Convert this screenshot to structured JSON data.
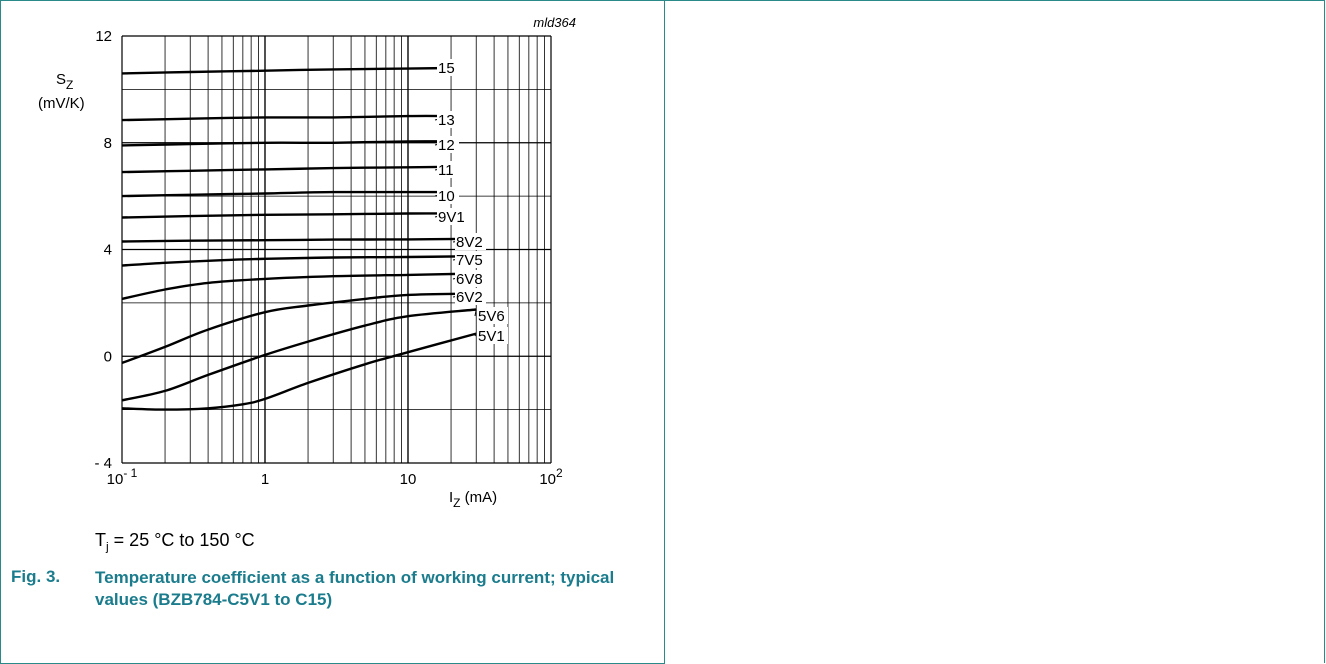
{
  "figure": {
    "code": "mld364",
    "number": "Fig. 3.",
    "caption": "Temperature coefficient as a function of working current; typical values (BZB784-C5V1 to C15)",
    "condition_prefix": "T",
    "condition_sub": "j",
    "condition_suffix": " = 25 °C to 150 °C"
  },
  "chart_data": {
    "type": "line",
    "x_scale": "log",
    "xlim": [
      0.1,
      100
    ],
    "ylim": [
      -4,
      12
    ],
    "grid": true,
    "xlabel_main": "I",
    "xlabel_sub": "Z",
    "xlabel_unit": " (mA)",
    "ylabel_main": "S",
    "ylabel_sub": "Z",
    "ylabel_unit": "(mV/K)",
    "x_ticks": [
      {
        "value": 0.1,
        "base": "10",
        "exp": "- 1"
      },
      {
        "value": 1,
        "base": "1",
        "exp": ""
      },
      {
        "value": 10,
        "base": "10",
        "exp": ""
      },
      {
        "value": 100,
        "base": "10",
        "exp": "2"
      }
    ],
    "y_ticks": [
      {
        "value": 12,
        "label": "12"
      },
      {
        "value": 8,
        "label": "8"
      },
      {
        "value": 4,
        "label": "4"
      },
      {
        "value": 0,
        "label": "0"
      },
      {
        "value": -4,
        "label": "- 4"
      }
    ],
    "series": [
      {
        "name": "15",
        "x": [
          0.1,
          0.3,
          1,
          3,
          10,
          20
        ],
        "y": [
          10.6,
          10.65,
          10.7,
          10.75,
          10.78,
          10.8
        ]
      },
      {
        "name": "13",
        "x": [
          0.1,
          0.3,
          1,
          3,
          10,
          20
        ],
        "y": [
          8.85,
          8.9,
          8.95,
          8.95,
          9.0,
          9.0
        ]
      },
      {
        "name": "12",
        "x": [
          0.1,
          0.3,
          1,
          3,
          10,
          20
        ],
        "y": [
          7.9,
          7.95,
          8.0,
          8.0,
          8.05,
          8.05
        ]
      },
      {
        "name": "11",
        "x": [
          0.1,
          0.3,
          1,
          3,
          10,
          20
        ],
        "y": [
          6.9,
          6.95,
          7.0,
          7.05,
          7.08,
          7.1
        ]
      },
      {
        "name": "10",
        "x": [
          0.1,
          0.3,
          1,
          3,
          10,
          20
        ],
        "y": [
          6.0,
          6.05,
          6.1,
          6.15,
          6.15,
          6.15
        ]
      },
      {
        "name": "9V1",
        "x": [
          0.1,
          0.3,
          1,
          3,
          10,
          20
        ],
        "y": [
          5.2,
          5.25,
          5.3,
          5.32,
          5.35,
          5.35
        ]
      },
      {
        "name": "8V2",
        "x": [
          0.1,
          0.3,
          1,
          3,
          10,
          30
        ],
        "y": [
          4.3,
          4.33,
          4.35,
          4.37,
          4.38,
          4.4
        ]
      },
      {
        "name": "7V5",
        "x": [
          0.1,
          0.2,
          0.5,
          1,
          3,
          10,
          30
        ],
        "y": [
          3.4,
          3.5,
          3.6,
          3.65,
          3.7,
          3.72,
          3.75
        ]
      },
      {
        "name": "6V8",
        "x": [
          0.1,
          0.2,
          0.4,
          1,
          3,
          10,
          30
        ],
        "y": [
          2.15,
          2.5,
          2.75,
          2.9,
          3.0,
          3.05,
          3.1
        ]
      },
      {
        "name": "6V2",
        "x": [
          0.1,
          0.2,
          0.4,
          1,
          2,
          5,
          10,
          30
        ],
        "y": [
          -0.25,
          0.35,
          1.0,
          1.65,
          1.9,
          2.15,
          2.3,
          2.35
        ]
      },
      {
        "name": "5V6",
        "x": [
          0.1,
          0.2,
          0.4,
          1,
          2,
          5,
          10,
          30
        ],
        "y": [
          -1.65,
          -1.3,
          -0.7,
          0.05,
          0.55,
          1.15,
          1.5,
          1.75
        ]
      },
      {
        "name": "5V1",
        "x": [
          0.1,
          0.2,
          0.4,
          0.7,
          1,
          2,
          5,
          10,
          30
        ],
        "y": [
          -1.95,
          -2.0,
          -1.95,
          -1.8,
          -1.6,
          -1.0,
          -0.3,
          0.15,
          0.85
        ]
      }
    ]
  }
}
